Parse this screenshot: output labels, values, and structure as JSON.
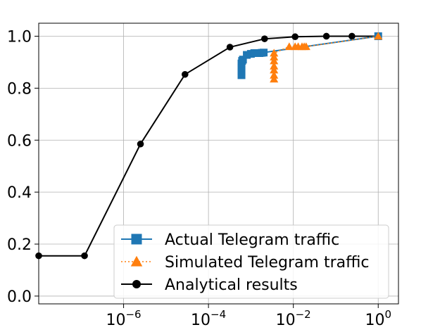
{
  "chart_data": {
    "type": "line",
    "title": "",
    "xlabel": "",
    "ylabel": "",
    "xscale": "log",
    "xlim": [
      1e-08,
      3
    ],
    "ylim": [
      -0.03,
      1.05
    ],
    "grid": true,
    "legend_position": "lower right",
    "x_ticks": [
      {
        "value": 1e-06,
        "base": "10",
        "exp": "−6"
      },
      {
        "value": 0.0001,
        "base": "10",
        "exp": "−4"
      },
      {
        "value": 0.01,
        "base": "10",
        "exp": "−2"
      },
      {
        "value": 1,
        "base": "10",
        "exp": "0"
      }
    ],
    "y_ticks": [
      {
        "value": 0.0,
        "label": "0.0"
      },
      {
        "value": 0.2,
        "label": "0.2"
      },
      {
        "value": 0.4,
        "label": "0.4"
      },
      {
        "value": 0.6,
        "label": "0.6"
      },
      {
        "value": 0.8,
        "label": "0.8"
      },
      {
        "value": 1.0,
        "label": "1.0"
      }
    ],
    "series": [
      {
        "name": "Actual Telegram traffic",
        "color": "#1f77b4",
        "marker": "square",
        "linestyle": "solid",
        "x": [
          0.0006,
          0.0006,
          0.0006,
          0.0006,
          0.00062,
          0.00065,
          0.0008,
          0.001,
          0.0012,
          0.0014,
          0.0016,
          0.0018,
          0.002,
          1.0
        ],
        "y": [
          0.85,
          0.865,
          0.88,
          0.895,
          0.905,
          0.91,
          0.928,
          0.932,
          0.935,
          0.935,
          0.935,
          0.936,
          0.937,
          1.0
        ]
      },
      {
        "name": "Simulated Telegram traffic",
        "color": "#ff7f0e",
        "marker": "triangle",
        "linestyle": "dotted",
        "x": [
          0.0035,
          0.0035,
          0.0035,
          0.0035,
          0.0035,
          0.0035,
          0.0035,
          0.008,
          0.011,
          0.013,
          0.016,
          0.018,
          0.02,
          1.0
        ],
        "y": [
          0.835,
          0.85,
          0.87,
          0.885,
          0.905,
          0.92,
          0.935,
          0.96,
          0.96,
          0.96,
          0.96,
          0.96,
          0.96,
          1.0
        ]
      },
      {
        "name": "Analytical results",
        "color": "#000000",
        "marker": "circle",
        "linestyle": "solid",
        "x": [
          1e-08,
          1.2e-07,
          2.5e-06,
          2.8e-05,
          0.00032,
          0.0021,
          0.011,
          0.06,
          0.24,
          1.0
        ],
        "y": [
          0.155,
          0.155,
          0.585,
          0.853,
          0.958,
          0.99,
          0.998,
          1.0,
          1.0,
          1.0
        ]
      }
    ]
  }
}
